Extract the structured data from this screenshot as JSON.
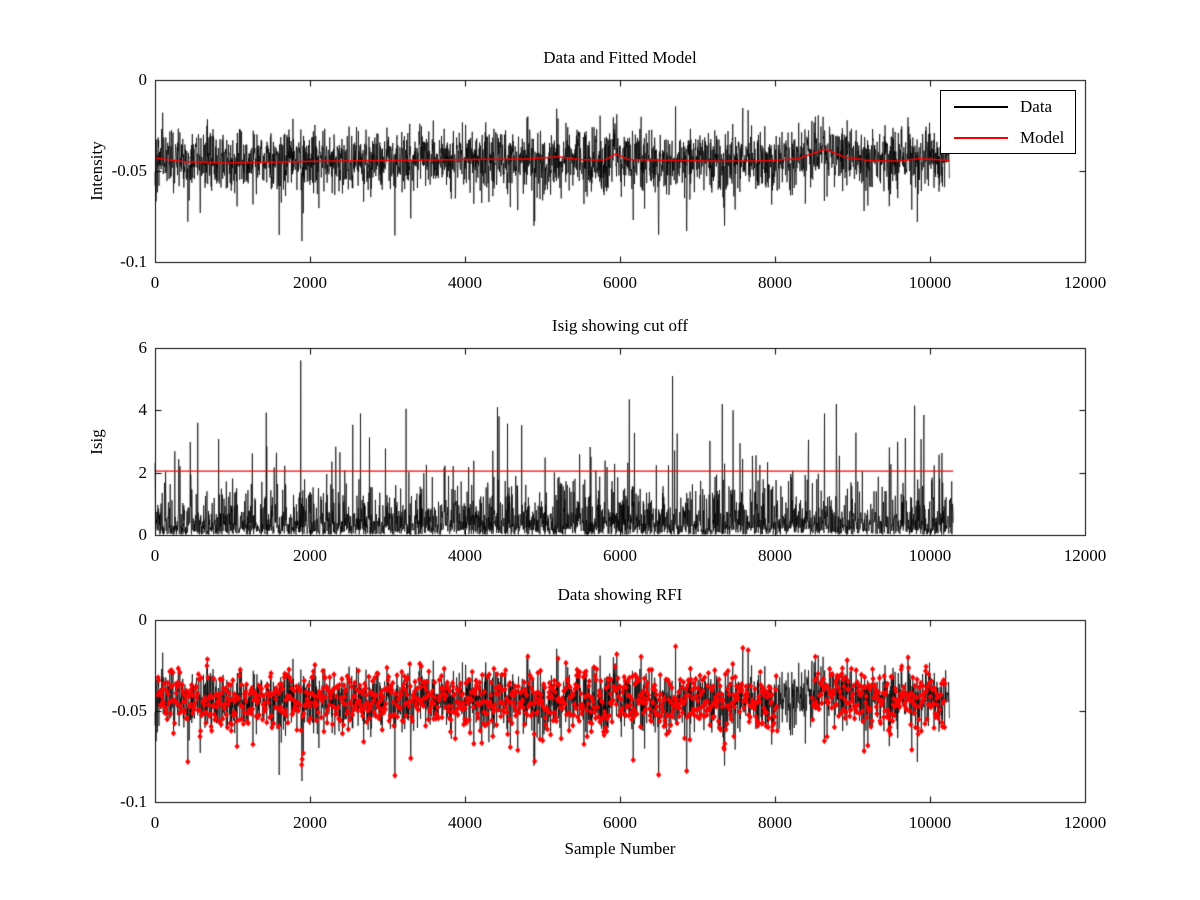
{
  "figure": {
    "background": "#ffffff",
    "data_color": "#000000",
    "model_color": "#ff0000"
  },
  "chart_data": [
    {
      "type": "line",
      "title": "Data and Fitted Model",
      "ylabel": "Intensity",
      "xlim": [
        0,
        12000
      ],
      "ylim": [
        -0.1,
        0
      ],
      "xticks": [
        0,
        2000,
        4000,
        6000,
        8000,
        10000,
        12000
      ],
      "xtick_labels": [
        "0",
        "2000",
        "4000",
        "6000",
        "8000",
        "10000",
        "12000"
      ],
      "yticks": [
        0,
        -0.05,
        -0.1
      ],
      "ytick_labels": [
        "0",
        "-0.05",
        "-0.1"
      ],
      "grid": false,
      "legend": {
        "position": "northeast",
        "entries": [
          {
            "label": "Data",
            "color": "#000000"
          },
          {
            "label": "Model",
            "color": "#ff0000"
          }
        ]
      },
      "series": [
        {
          "name": "Data",
          "color": "#000000",
          "kind": "noise",
          "x_start": 0,
          "x_end": 10250,
          "n": 3000,
          "seed": 42,
          "noise_sd": 0.0082,
          "clamp": [
            -0.0965,
            -0.0145
          ],
          "center_points": [
            [
              0,
              -0.0428
            ],
            [
              350,
              -0.0448
            ],
            [
              900,
              -0.0456
            ],
            [
              1500,
              -0.0452
            ],
            [
              2100,
              -0.0446
            ],
            [
              2800,
              -0.0443
            ],
            [
              3500,
              -0.044
            ],
            [
              4200,
              -0.0436
            ],
            [
              4800,
              -0.0434
            ],
            [
              5200,
              -0.0422
            ],
            [
              5500,
              -0.0438
            ],
            [
              5800,
              -0.044
            ],
            [
              5950,
              -0.0406
            ],
            [
              6100,
              -0.0437
            ],
            [
              6700,
              -0.0442
            ],
            [
              7300,
              -0.0446
            ],
            [
              7900,
              -0.0444
            ],
            [
              8300,
              -0.0432
            ],
            [
              8650,
              -0.038
            ],
            [
              8900,
              -0.0424
            ],
            [
              9200,
              -0.0442
            ],
            [
              9600,
              -0.0446
            ],
            [
              9850,
              -0.0432
            ],
            [
              10250,
              -0.0441
            ]
          ],
          "dips": [
            [
              1895,
              -0.0885
            ],
            [
              6500,
              -0.085
            ],
            [
              6860,
              -0.083
            ],
            [
              7350,
              -0.08
            ],
            [
              3300,
              -0.076
            ],
            [
              585,
              -0.073
            ],
            [
              9150,
              -0.072
            ],
            [
              4680,
              -0.0715
            ]
          ]
        },
        {
          "name": "Model",
          "color": "#ff0000",
          "kind": "smooth",
          "line_width": 1.5,
          "points": [
            [
              0,
              -0.0428
            ],
            [
              350,
              -0.0448
            ],
            [
              900,
              -0.0456
            ],
            [
              1500,
              -0.0452
            ],
            [
              2100,
              -0.0446
            ],
            [
              2800,
              -0.0443
            ],
            [
              3500,
              -0.044
            ],
            [
              4200,
              -0.0436
            ],
            [
              4800,
              -0.0434
            ],
            [
              5200,
              -0.0422
            ],
            [
              5500,
              -0.0438
            ],
            [
              5800,
              -0.044
            ],
            [
              5950,
              -0.0406
            ],
            [
              6100,
              -0.0437
            ],
            [
              6700,
              -0.0442
            ],
            [
              7300,
              -0.0446
            ],
            [
              7900,
              -0.0444
            ],
            [
              8300,
              -0.0432
            ],
            [
              8650,
              -0.038
            ],
            [
              8900,
              -0.0424
            ],
            [
              9200,
              -0.0442
            ],
            [
              9600,
              -0.0446
            ],
            [
              9850,
              -0.0432
            ],
            [
              10250,
              -0.0441
            ]
          ]
        }
      ]
    },
    {
      "type": "line",
      "title": "Isig showing cut off",
      "ylabel": "Isig",
      "xlim": [
        0,
        12000
      ],
      "ylim": [
        0,
        6
      ],
      "xticks": [
        0,
        2000,
        4000,
        6000,
        8000,
        10000,
        12000
      ],
      "xtick_labels": [
        "0",
        "2000",
        "4000",
        "6000",
        "8000",
        "10000",
        "12000"
      ],
      "yticks": [
        0,
        2,
        4,
        6
      ],
      "ytick_labels": [
        "0",
        "2",
        "4",
        "6"
      ],
      "grid": false,
      "series": [
        {
          "name": "Isig",
          "color": "#000000",
          "kind": "spikes",
          "x_start": 0,
          "x_end": 10300,
          "n": 3100,
          "seed": 7,
          "exp_mean": 0.52,
          "soft_cap": 4.0,
          "peaks": [
            [
              1880,
              5.6
            ],
            [
              6680,
              5.1
            ],
            [
              6120,
              4.35
            ],
            [
              7320,
              4.2
            ],
            [
              8790,
              4.2
            ],
            [
              9800,
              4.15
            ],
            [
              4420,
              4.1
            ],
            [
              3240,
              4.05
            ],
            [
              7460,
              4.0
            ],
            [
              8640,
              3.9
            ],
            [
              2650,
              3.9
            ],
            [
              9920,
              3.85
            ],
            [
              550,
              3.6
            ]
          ]
        },
        {
          "name": "cut off",
          "color": "#ff0000",
          "kind": "hline",
          "y": 2.05,
          "x_start": 0,
          "x_end": 10300,
          "line_width": 1.3
        }
      ]
    },
    {
      "type": "line+markers",
      "title": "Data showing RFI",
      "xlabel": "Sample Number",
      "xlim": [
        0,
        12000
      ],
      "ylim": [
        -0.1,
        0
      ],
      "xticks": [
        0,
        2000,
        4000,
        6000,
        8000,
        10000,
        12000
      ],
      "xtick_labels": [
        "0",
        "2000",
        "4000",
        "6000",
        "8000",
        "10000",
        "12000"
      ],
      "yticks": [
        0,
        -0.05,
        -0.1
      ],
      "ytick_labels": [
        "0",
        "-0.05",
        "-0.1"
      ],
      "grid": false,
      "series": [
        {
          "name": "Data",
          "color": "#000000",
          "kind": "noise",
          "x_start": 0,
          "x_end": 10250,
          "n": 3000,
          "seed": 42,
          "noise_sd": 0.0082,
          "clamp": [
            -0.0965,
            -0.0145
          ],
          "center_points": [
            [
              0,
              -0.0428
            ],
            [
              350,
              -0.0448
            ],
            [
              900,
              -0.0456
            ],
            [
              1500,
              -0.0452
            ],
            [
              2100,
              -0.0446
            ],
            [
              2800,
              -0.0443
            ],
            [
              3500,
              -0.044
            ],
            [
              4200,
              -0.0436
            ],
            [
              4800,
              -0.0434
            ],
            [
              5200,
              -0.0422
            ],
            [
              5500,
              -0.0438
            ],
            [
              5800,
              -0.044
            ],
            [
              5950,
              -0.0406
            ],
            [
              6100,
              -0.0437
            ],
            [
              6700,
              -0.0442
            ],
            [
              7300,
              -0.0446
            ],
            [
              7900,
              -0.0444
            ],
            [
              8300,
              -0.0432
            ],
            [
              8650,
              -0.038
            ],
            [
              8900,
              -0.0424
            ],
            [
              9200,
              -0.0442
            ],
            [
              9600,
              -0.0446
            ],
            [
              9850,
              -0.0432
            ],
            [
              10250,
              -0.0441
            ]
          ],
          "dips": [
            [
              1895,
              -0.0885
            ],
            [
              6500,
              -0.085
            ],
            [
              6860,
              -0.083
            ],
            [
              7350,
              -0.08
            ],
            [
              3300,
              -0.076
            ],
            [
              585,
              -0.073
            ],
            [
              9150,
              -0.072
            ],
            [
              4680,
              -0.0715
            ]
          ]
        },
        {
          "name": "RFI flagged",
          "color": "#ff0000",
          "kind": "markers",
          "marker": "diamond",
          "marker_w": 2.6,
          "marker_h": 3.2,
          "step": 2,
          "x_start": 30,
          "x_end": 10200,
          "gaps": [
            [
              8030,
              8480
            ]
          ]
        }
      ]
    }
  ]
}
